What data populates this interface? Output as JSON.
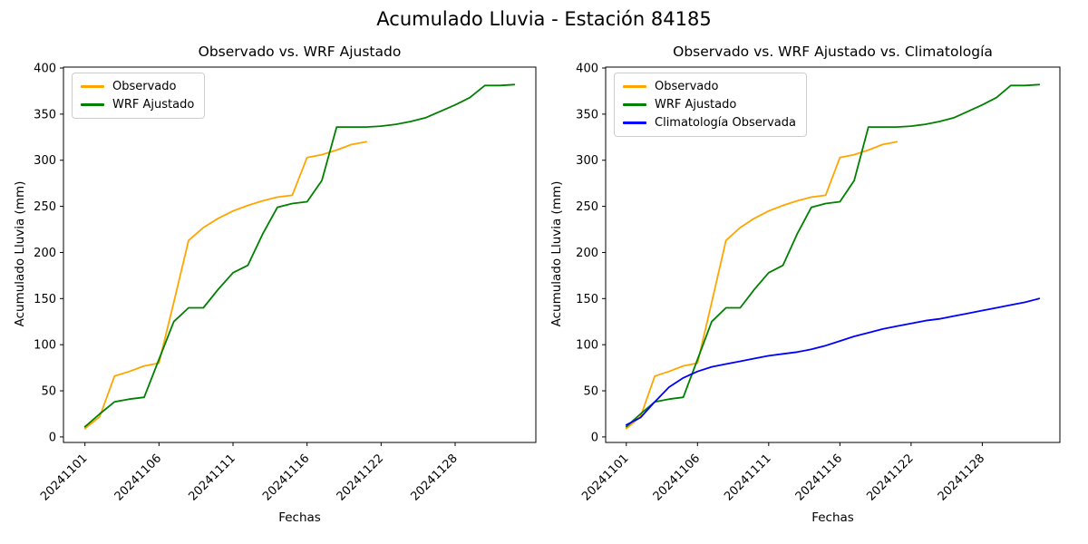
{
  "figure": {
    "title": "Acumulado Lluvia - Estación 84185"
  },
  "chart_data": [
    {
      "type": "line",
      "title": "Observado vs. WRF Ajustado",
      "xlabel": "Fechas",
      "ylabel": "Acumulado Lluvia (mm)",
      "ylim": [
        0,
        400
      ],
      "yticks": [
        0,
        50,
        100,
        150,
        200,
        250,
        300,
        350,
        400
      ],
      "n_points": 30,
      "grid": false,
      "legend_position": "upper-left",
      "x_tick_positions": [
        0,
        5,
        10,
        15,
        20,
        25
      ],
      "x_tick_labels": [
        "20241101",
        "20241106",
        "20241111",
        "20241116",
        "20241122",
        "20241128"
      ],
      "series": [
        {
          "name": "Observado",
          "color": "#FFA500",
          "values": [
            9,
            22,
            66,
            71,
            77,
            80,
            146,
            213,
            227,
            237,
            245,
            251,
            256,
            260,
            262,
            303,
            306,
            311,
            317,
            320
          ]
        },
        {
          "name": "WRF Ajustado",
          "color": "#008000",
          "values": [
            11,
            25,
            38,
            41,
            43,
            84,
            125,
            140,
            140,
            160,
            178,
            186,
            220,
            249,
            253,
            255,
            278,
            336,
            336,
            336,
            337,
            339,
            342,
            346,
            353,
            360,
            368,
            381,
            381,
            382
          ]
        }
      ]
    },
    {
      "type": "line",
      "title": "Observado vs. WRF Ajustado vs. Climatología",
      "xlabel": "Fechas",
      "ylabel": "Acumulado Lluvia (mm)",
      "ylim": [
        0,
        400
      ],
      "yticks": [
        0,
        50,
        100,
        150,
        200,
        250,
        300,
        350,
        400
      ],
      "n_points": 30,
      "grid": false,
      "legend_position": "upper-left",
      "x_tick_positions": [
        0,
        5,
        10,
        15,
        20,
        25
      ],
      "x_tick_labels": [
        "20241101",
        "20241106",
        "20241111",
        "20241116",
        "20241122",
        "20241128"
      ],
      "series": [
        {
          "name": "Observado",
          "color": "#FFA500",
          "values": [
            9,
            22,
            66,
            71,
            77,
            80,
            146,
            213,
            227,
            237,
            245,
            251,
            256,
            260,
            262,
            303,
            306,
            311,
            317,
            320
          ]
        },
        {
          "name": "WRF Ajustado",
          "color": "#008000",
          "values": [
            11,
            25,
            38,
            41,
            43,
            84,
            125,
            140,
            140,
            160,
            178,
            186,
            220,
            249,
            253,
            255,
            278,
            336,
            336,
            336,
            337,
            339,
            342,
            346,
            353,
            360,
            368,
            381,
            381,
            382
          ]
        },
        {
          "name": "Climatología Observada",
          "color": "#0000FF",
          "values": [
            13,
            21,
            38,
            54,
            64,
            71,
            76,
            79,
            82,
            85,
            88,
            90,
            92,
            95,
            99,
            104,
            109,
            113,
            117,
            120,
            123,
            126,
            128,
            131,
            134,
            137,
            140,
            143,
            146,
            150
          ]
        }
      ]
    }
  ]
}
